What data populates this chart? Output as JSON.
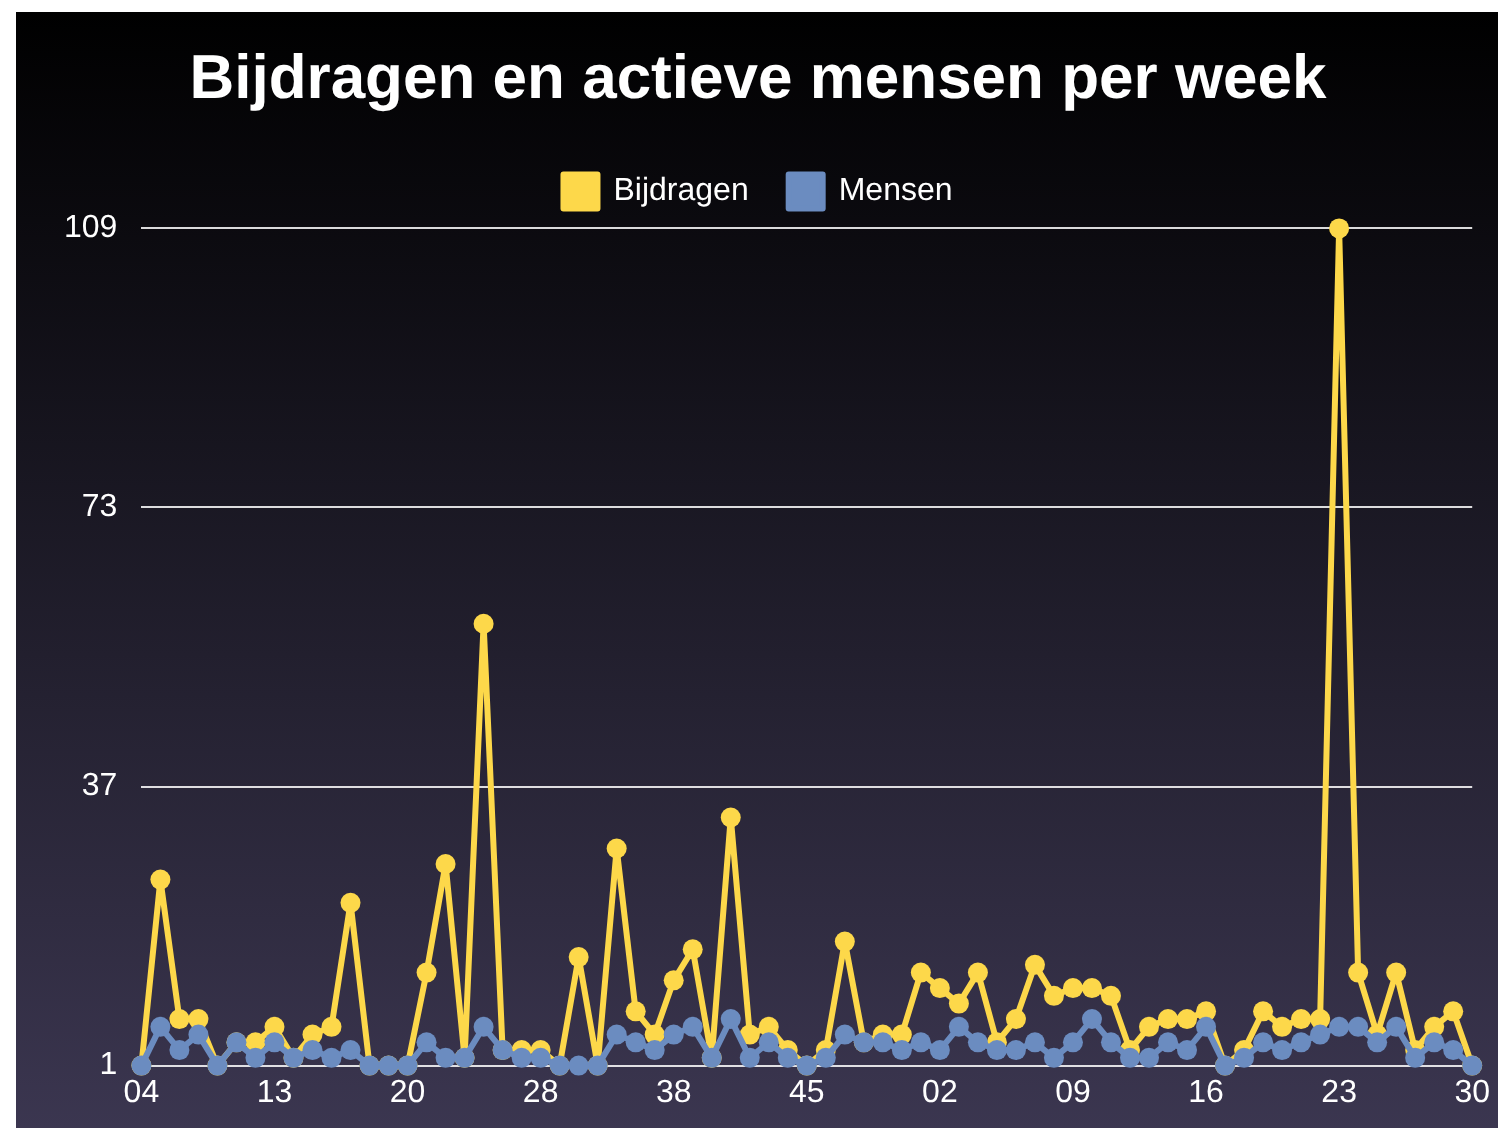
{
  "chart_data": {
    "type": "line",
    "title": "Bijdragen en actieve mensen per week",
    "categories": [
      "04",
      null,
      null,
      null,
      null,
      null,
      null,
      "13",
      null,
      null,
      null,
      null,
      null,
      null,
      "20",
      null,
      null,
      null,
      null,
      null,
      null,
      "28",
      null,
      null,
      null,
      null,
      null,
      null,
      "38",
      null,
      null,
      null,
      null,
      null,
      null,
      "45",
      null,
      null,
      null,
      null,
      null,
      null,
      "02",
      null,
      null,
      null,
      null,
      null,
      null,
      "09",
      null,
      null,
      null,
      null,
      null,
      null,
      "16",
      null,
      null,
      null,
      null,
      null,
      null,
      "23",
      null,
      null,
      null,
      null,
      null,
      null,
      "30"
    ],
    "series": [
      {
        "name": "Bijdragen",
        "color": "#fdd84a",
        "values": [
          1,
          25,
          7,
          7,
          1,
          4,
          4,
          6,
          2,
          5,
          6,
          22,
          1,
          1,
          1,
          13,
          27,
          2,
          58,
          3,
          3,
          3,
          1,
          15,
          1,
          29,
          8,
          5,
          12,
          16,
          2,
          33,
          5,
          6,
          3,
          1,
          3,
          17,
          4,
          5,
          5,
          13,
          11,
          9,
          13,
          4,
          7,
          14,
          10,
          11,
          11,
          10,
          3,
          6,
          7,
          7,
          8,
          1,
          3,
          8,
          6,
          7,
          7,
          109,
          13,
          5,
          13,
          3,
          6,
          8,
          1
        ]
      },
      {
        "name": "Mensen",
        "color": "#6b8cc0",
        "values": [
          1,
          6,
          3,
          5,
          1,
          4,
          2,
          4,
          2,
          3,
          2,
          3,
          1,
          1,
          1,
          4,
          2,
          2,
          6,
          3,
          2,
          2,
          1,
          1,
          1,
          5,
          4,
          3,
          5,
          6,
          2,
          7,
          2,
          4,
          2,
          1,
          2,
          5,
          4,
          4,
          3,
          4,
          3,
          6,
          4,
          3,
          3,
          4,
          2,
          4,
          7,
          4,
          2,
          2,
          4,
          3,
          6,
          1,
          2,
          4,
          3,
          4,
          5,
          6,
          6,
          4,
          6,
          2,
          4,
          3,
          1
        ]
      }
    ],
    "ylim": [
      1,
      109
    ],
    "yticks": [
      1,
      37,
      73,
      109
    ],
    "grid": "y",
    "legend": "top",
    "marker": "circle",
    "line_style": "solid"
  }
}
